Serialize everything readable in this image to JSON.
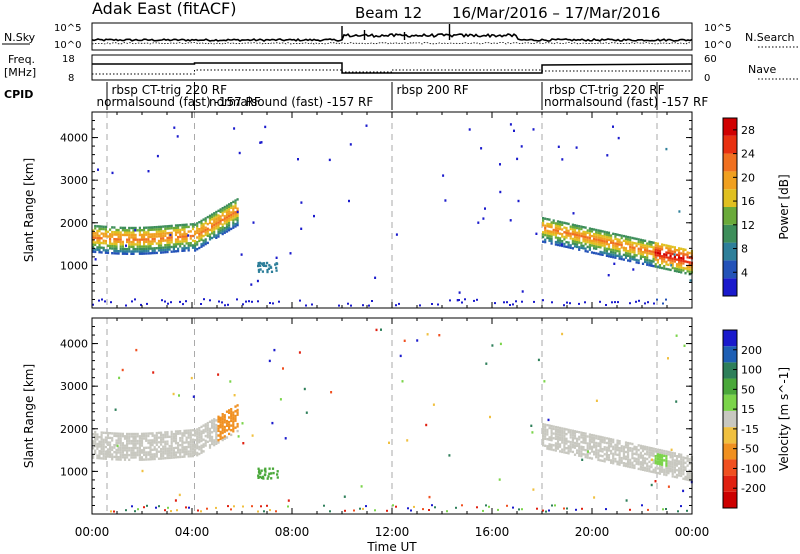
{
  "header": {
    "site": "Adak East (fitACF)",
    "beam": "Beam 12",
    "date_range": "16/Mar/2016 – 17/Mar/2016"
  },
  "strip_labels": {
    "nsky": "N.Sky",
    "nsky_tick_top": "10^5",
    "nsky_tick_bottom": "10^0",
    "nsearch": "N.Search",
    "nsearch_tick_top": "10^5",
    "nsearch_tick_bottom": "10^0",
    "freq_line1": "Freq.",
    "freq_line2": "[MHz]",
    "freq_tick_top": "18",
    "freq_tick_bottom": "8",
    "nave": "Nave",
    "nave_tick_top": "60",
    "nave_tick_bottom": "0",
    "cpid": "CPID"
  },
  "cpid_segments": [
    {
      "text": "rbsp CT-trig 220 RF",
      "row": 1,
      "t": 0.7
    },
    {
      "text": "normalsound (fast) -157 RF",
      "row": 2,
      "t": 0.1
    },
    {
      "text": "normalsound (fast) -157 RF",
      "row": 2,
      "t": 4.6
    },
    {
      "text": "rbsp 200 RF",
      "row": 1,
      "t": 12.1
    },
    {
      "text": "rbsp CT-trig 220 RF",
      "row": 1,
      "t": 18.2
    },
    {
      "text": "normalsound (fast) -157 RF",
      "row": 2,
      "t": 18.0
    }
  ],
  "cpid_boundaries_hours": [
    0.6,
    4.1,
    12.0,
    18.0,
    22.6
  ],
  "colors": {
    "power": [
      "#1a1acc",
      "#2352b8",
      "#2e7f9a",
      "#3d8e5a",
      "#6aaa3a",
      "#e0c020",
      "#f0a020",
      "#f07020",
      "#e83010",
      "#d00000"
    ],
    "velocity": [
      "#1a1acc",
      "#1e5fb4",
      "#2e7f5a",
      "#4aa83a",
      "#7bd44a",
      "#c8c8c0",
      "#f0c040",
      "#f09020",
      "#f05020",
      "#e02010",
      "#cc0000"
    ]
  },
  "chart_data": [
    {
      "type": "heatmap",
      "title": "Power",
      "xlabel": "Time UT",
      "ylabel": "Slant Range [km]",
      "x_ticks": [
        "00:00",
        "04:00",
        "08:00",
        "12:00",
        "16:00",
        "20:00",
        "00:00"
      ],
      "x_range_hours": [
        0,
        24
      ],
      "y_ticks": [
        1000,
        2000,
        3000,
        4000
      ],
      "ylim": [
        0,
        4600
      ],
      "colorbar_label": "Power [dB]",
      "colorbar_ticks": [
        4,
        8,
        12,
        16,
        20,
        24,
        28
      ],
      "colorbar_range": [
        0,
        30
      ],
      "echo_bands": [
        {
          "t_start": 0.0,
          "t_end": 5.8,
          "range_center_start": 1700,
          "range_center_end": 2400,
          "width": 500,
          "power_dB": 18
        },
        {
          "t_start": 18.0,
          "t_end": 24.0,
          "range_center_start": 1900,
          "range_center_end": 1200,
          "width": 450,
          "power_dB": 20
        }
      ]
    },
    {
      "type": "heatmap",
      "title": "Velocity",
      "xlabel": "Time UT",
      "ylabel": "Slant Range [km]",
      "x_ticks": [
        "00:00",
        "04:00",
        "08:00",
        "12:00",
        "16:00",
        "20:00",
        "00:00"
      ],
      "x_range_hours": [
        0,
        24
      ],
      "y_ticks": [
        1000,
        2000,
        3000,
        4000
      ],
      "ylim": [
        0,
        4600
      ],
      "colorbar_label": "Velocity [m s^-1]",
      "colorbar_ticks": [
        "200",
        "100",
        "50",
        "15",
        "-15",
        "-50",
        "-100",
        "-200"
      ],
      "colorbar_range": [
        -250,
        250
      ]
    }
  ]
}
